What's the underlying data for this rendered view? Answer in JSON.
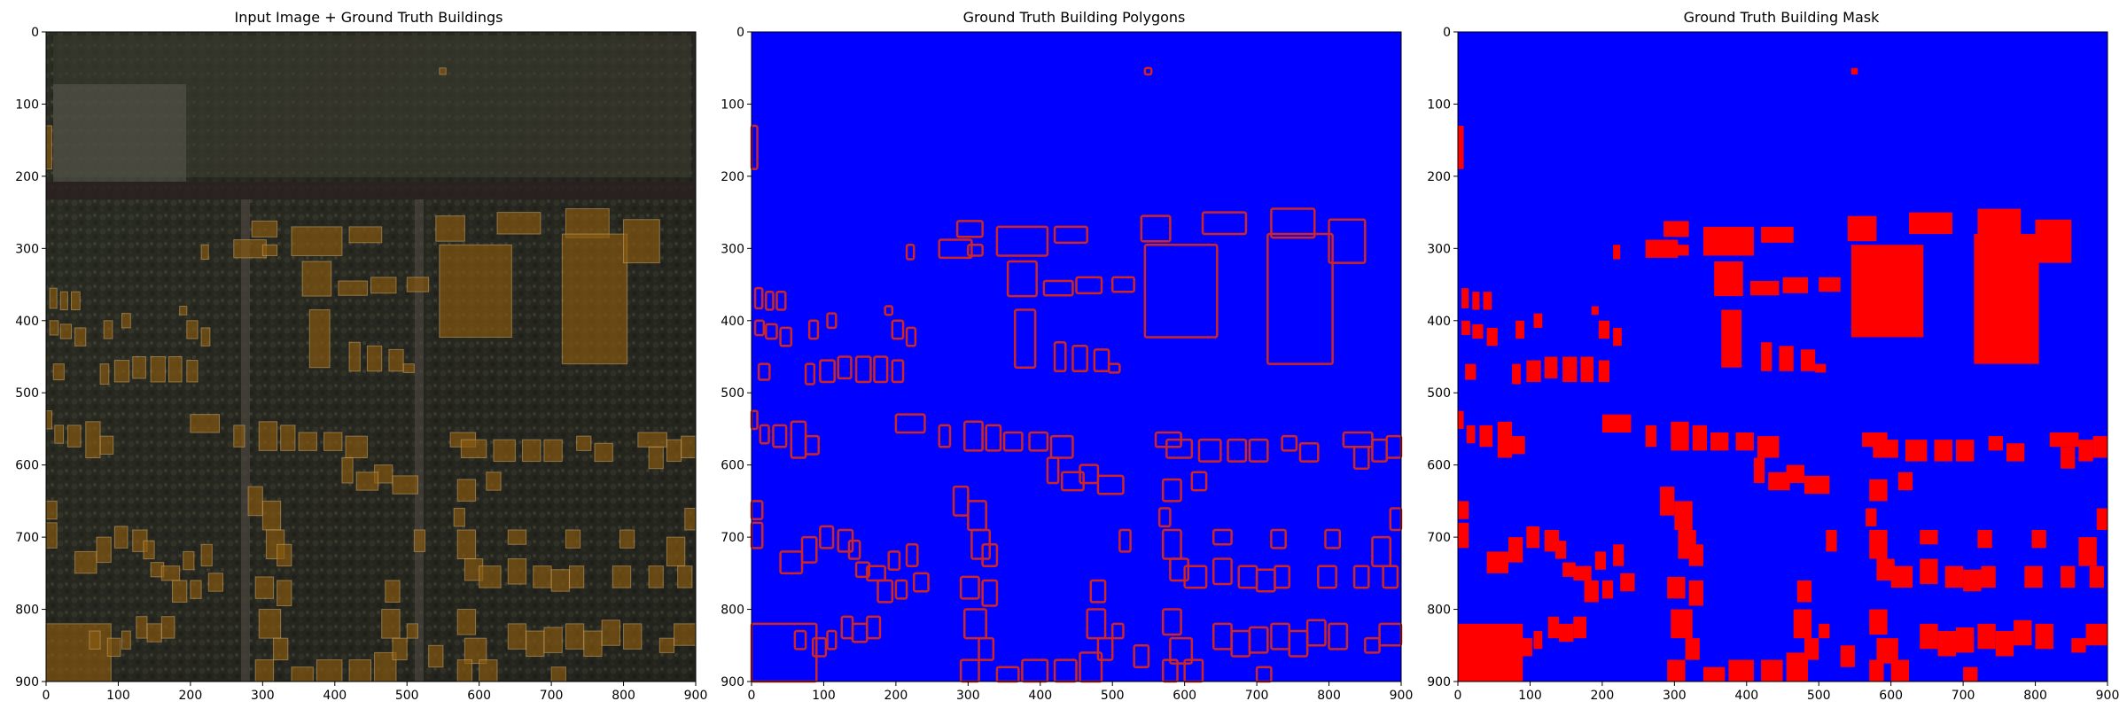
{
  "figure": {
    "panels": [
      {
        "id": "overlay",
        "title": "Input Image + Ground Truth Buildings",
        "kind": "overlay"
      },
      {
        "id": "polygons",
        "title": "Ground Truth Building Polygons",
        "kind": "polygons"
      },
      {
        "id": "mask",
        "title": "Ground Truth Building Mask",
        "kind": "mask"
      }
    ]
  },
  "chart_data": {
    "type": "heatmap",
    "x_ticks": [
      0,
      100,
      200,
      300,
      400,
      500,
      600,
      700,
      800,
      900
    ],
    "y_ticks": [
      0,
      100,
      200,
      300,
      400,
      500,
      600,
      700,
      800,
      900
    ],
    "xlim": [
      0,
      900
    ],
    "ylim": [
      900,
      0
    ],
    "colors": {
      "mask_background": "#0000ff",
      "building": "#ff0000",
      "polygon_outline": "#cc2626",
      "overlay_tint": "#8a5a10"
    },
    "buildings": [
      {
        "x": 0,
        "y": 130,
        "w": 8,
        "h": 60
      },
      {
        "x": 545,
        "y": 50,
        "w": 9,
        "h": 9
      },
      {
        "x": 0,
        "y": 820,
        "w": 90,
        "h": 80
      },
      {
        "x": 215,
        "y": 295,
        "w": 10,
        "h": 20
      },
      {
        "x": 185,
        "y": 380,
        "w": 10,
        "h": 12
      },
      {
        "x": 195,
        "y": 400,
        "w": 15,
        "h": 25
      },
      {
        "x": 215,
        "y": 410,
        "w": 12,
        "h": 25
      },
      {
        "x": 285,
        "y": 262,
        "w": 35,
        "h": 22
      },
      {
        "x": 260,
        "y": 288,
        "w": 45,
        "h": 25
      },
      {
        "x": 340,
        "y": 270,
        "w": 70,
        "h": 40
      },
      {
        "x": 420,
        "y": 270,
        "w": 45,
        "h": 22
      },
      {
        "x": 355,
        "y": 318,
        "w": 40,
        "h": 48
      },
      {
        "x": 405,
        "y": 345,
        "w": 40,
        "h": 20
      },
      {
        "x": 450,
        "y": 340,
        "w": 35,
        "h": 22
      },
      {
        "x": 500,
        "y": 340,
        "w": 30,
        "h": 20
      },
      {
        "x": 540,
        "y": 255,
        "w": 40,
        "h": 35
      },
      {
        "x": 545,
        "y": 295,
        "w": 100,
        "h": 128
      },
      {
        "x": 625,
        "y": 250,
        "w": 60,
        "h": 30
      },
      {
        "x": 720,
        "y": 245,
        "w": 60,
        "h": 40
      },
      {
        "x": 715,
        "y": 280,
        "w": 90,
        "h": 180
      },
      {
        "x": 800,
        "y": 260,
        "w": 50,
        "h": 60
      },
      {
        "x": 5,
        "y": 355,
        "w": 10,
        "h": 28
      },
      {
        "x": 20,
        "y": 360,
        "w": 10,
        "h": 25
      },
      {
        "x": 35,
        "y": 360,
        "w": 12,
        "h": 25
      },
      {
        "x": 5,
        "y": 400,
        "w": 12,
        "h": 20
      },
      {
        "x": 20,
        "y": 405,
        "w": 15,
        "h": 20
      },
      {
        "x": 40,
        "y": 410,
        "w": 15,
        "h": 25
      },
      {
        "x": 10,
        "y": 460,
        "w": 15,
        "h": 22
      },
      {
        "x": 75,
        "y": 460,
        "w": 12,
        "h": 28
      },
      {
        "x": 95,
        "y": 455,
        "w": 20,
        "h": 30
      },
      {
        "x": 120,
        "y": 450,
        "w": 18,
        "h": 30
      },
      {
        "x": 145,
        "y": 450,
        "w": 20,
        "h": 35
      },
      {
        "x": 170,
        "y": 450,
        "w": 18,
        "h": 35
      },
      {
        "x": 195,
        "y": 455,
        "w": 15,
        "h": 30
      },
      {
        "x": 80,
        "y": 400,
        "w": 12,
        "h": 25
      },
      {
        "x": 105,
        "y": 390,
        "w": 12,
        "h": 20
      },
      {
        "x": 365,
        "y": 385,
        "w": 28,
        "h": 80
      },
      {
        "x": 420,
        "y": 430,
        "w": 15,
        "h": 40
      },
      {
        "x": 445,
        "y": 435,
        "w": 20,
        "h": 35
      },
      {
        "x": 475,
        "y": 440,
        "w": 20,
        "h": 30
      },
      {
        "x": 495,
        "y": 460,
        "w": 15,
        "h": 12
      },
      {
        "x": 300,
        "y": 295,
        "w": 20,
        "h": 15
      },
      {
        "x": 0,
        "y": 525,
        "w": 8,
        "h": 25
      },
      {
        "x": 12,
        "y": 545,
        "w": 12,
        "h": 25
      },
      {
        "x": 30,
        "y": 545,
        "w": 18,
        "h": 30
      },
      {
        "x": 55,
        "y": 540,
        "w": 20,
        "h": 50
      },
      {
        "x": 75,
        "y": 560,
        "w": 18,
        "h": 25
      },
      {
        "x": 200,
        "y": 530,
        "w": 40,
        "h": 25
      },
      {
        "x": 260,
        "y": 545,
        "w": 15,
        "h": 30
      },
      {
        "x": 295,
        "y": 540,
        "w": 25,
        "h": 40
      },
      {
        "x": 325,
        "y": 545,
        "w": 20,
        "h": 35
      },
      {
        "x": 350,
        "y": 555,
        "w": 25,
        "h": 25
      },
      {
        "x": 385,
        "y": 555,
        "w": 25,
        "h": 25
      },
      {
        "x": 415,
        "y": 560,
        "w": 30,
        "h": 30
      },
      {
        "x": 455,
        "y": 600,
        "w": 25,
        "h": 25
      },
      {
        "x": 410,
        "y": 590,
        "w": 15,
        "h": 35
      },
      {
        "x": 430,
        "y": 610,
        "w": 30,
        "h": 25
      },
      {
        "x": 480,
        "y": 615,
        "w": 35,
        "h": 25
      },
      {
        "x": 560,
        "y": 555,
        "w": 35,
        "h": 20
      },
      {
        "x": 575,
        "y": 565,
        "w": 35,
        "h": 25
      },
      {
        "x": 620,
        "y": 565,
        "w": 30,
        "h": 30
      },
      {
        "x": 660,
        "y": 565,
        "w": 25,
        "h": 30
      },
      {
        "x": 690,
        "y": 565,
        "w": 25,
        "h": 30
      },
      {
        "x": 735,
        "y": 560,
        "w": 20,
        "h": 20
      },
      {
        "x": 760,
        "y": 570,
        "w": 25,
        "h": 25
      },
      {
        "x": 820,
        "y": 555,
        "w": 40,
        "h": 20
      },
      {
        "x": 835,
        "y": 575,
        "w": 20,
        "h": 30
      },
      {
        "x": 860,
        "y": 565,
        "w": 20,
        "h": 30
      },
      {
        "x": 880,
        "y": 560,
        "w": 20,
        "h": 30
      },
      {
        "x": 570,
        "y": 620,
        "w": 25,
        "h": 30
      },
      {
        "x": 610,
        "y": 610,
        "w": 20,
        "h": 25
      },
      {
        "x": 40,
        "y": 720,
        "w": 30,
        "h": 30
      },
      {
        "x": 70,
        "y": 700,
        "w": 20,
        "h": 35
      },
      {
        "x": 95,
        "y": 685,
        "w": 18,
        "h": 30
      },
      {
        "x": 120,
        "y": 690,
        "w": 20,
        "h": 30
      },
      {
        "x": 135,
        "y": 705,
        "w": 15,
        "h": 25
      },
      {
        "x": 145,
        "y": 735,
        "w": 18,
        "h": 20
      },
      {
        "x": 160,
        "y": 740,
        "w": 25,
        "h": 20
      },
      {
        "x": 190,
        "y": 720,
        "w": 15,
        "h": 25
      },
      {
        "x": 215,
        "y": 710,
        "w": 15,
        "h": 30
      },
      {
        "x": 225,
        "y": 750,
        "w": 20,
        "h": 25
      },
      {
        "x": 175,
        "y": 760,
        "w": 20,
        "h": 30
      },
      {
        "x": 200,
        "y": 760,
        "w": 15,
        "h": 25
      },
      {
        "x": 0,
        "y": 650,
        "w": 15,
        "h": 25
      },
      {
        "x": 0,
        "y": 680,
        "w": 15,
        "h": 35
      },
      {
        "x": 60,
        "y": 830,
        "w": 15,
        "h": 25
      },
      {
        "x": 85,
        "y": 840,
        "w": 18,
        "h": 25
      },
      {
        "x": 105,
        "y": 830,
        "w": 12,
        "h": 25
      },
      {
        "x": 125,
        "y": 810,
        "w": 15,
        "h": 30
      },
      {
        "x": 140,
        "y": 820,
        "w": 20,
        "h": 25
      },
      {
        "x": 160,
        "y": 810,
        "w": 18,
        "h": 30
      },
      {
        "x": 280,
        "y": 630,
        "w": 20,
        "h": 40
      },
      {
        "x": 300,
        "y": 650,
        "w": 25,
        "h": 40
      },
      {
        "x": 305,
        "y": 690,
        "w": 25,
        "h": 40
      },
      {
        "x": 320,
        "y": 710,
        "w": 20,
        "h": 30
      },
      {
        "x": 290,
        "y": 755,
        "w": 25,
        "h": 30
      },
      {
        "x": 320,
        "y": 760,
        "w": 20,
        "h": 35
      },
      {
        "x": 295,
        "y": 800,
        "w": 30,
        "h": 40
      },
      {
        "x": 315,
        "y": 840,
        "w": 20,
        "h": 30
      },
      {
        "x": 290,
        "y": 870,
        "w": 25,
        "h": 30
      },
      {
        "x": 340,
        "y": 880,
        "w": 30,
        "h": 20
      },
      {
        "x": 375,
        "y": 870,
        "w": 35,
        "h": 30
      },
      {
        "x": 420,
        "y": 870,
        "w": 30,
        "h": 30
      },
      {
        "x": 455,
        "y": 860,
        "w": 30,
        "h": 40
      },
      {
        "x": 470,
        "y": 760,
        "w": 20,
        "h": 30
      },
      {
        "x": 465,
        "y": 800,
        "w": 25,
        "h": 40
      },
      {
        "x": 480,
        "y": 840,
        "w": 20,
        "h": 30
      },
      {
        "x": 510,
        "y": 690,
        "w": 15,
        "h": 30
      },
      {
        "x": 530,
        "y": 850,
        "w": 20,
        "h": 30
      },
      {
        "x": 570,
        "y": 690,
        "w": 25,
        "h": 40
      },
      {
        "x": 580,
        "y": 730,
        "w": 25,
        "h": 30
      },
      {
        "x": 600,
        "y": 740,
        "w": 30,
        "h": 30
      },
      {
        "x": 640,
        "y": 730,
        "w": 25,
        "h": 35
      },
      {
        "x": 675,
        "y": 740,
        "w": 25,
        "h": 30
      },
      {
        "x": 700,
        "y": 745,
        "w": 25,
        "h": 30
      },
      {
        "x": 725,
        "y": 740,
        "w": 20,
        "h": 30
      },
      {
        "x": 785,
        "y": 740,
        "w": 25,
        "h": 30
      },
      {
        "x": 835,
        "y": 740,
        "w": 20,
        "h": 30
      },
      {
        "x": 860,
        "y": 700,
        "w": 25,
        "h": 40
      },
      {
        "x": 875,
        "y": 740,
        "w": 20,
        "h": 30
      },
      {
        "x": 885,
        "y": 660,
        "w": 15,
        "h": 30
      },
      {
        "x": 570,
        "y": 800,
        "w": 25,
        "h": 35
      },
      {
        "x": 580,
        "y": 840,
        "w": 30,
        "h": 35
      },
      {
        "x": 600,
        "y": 870,
        "w": 25,
        "h": 30
      },
      {
        "x": 640,
        "y": 820,
        "w": 25,
        "h": 35
      },
      {
        "x": 665,
        "y": 830,
        "w": 25,
        "h": 35
      },
      {
        "x": 690,
        "y": 825,
        "w": 25,
        "h": 35
      },
      {
        "x": 720,
        "y": 820,
        "w": 25,
        "h": 35
      },
      {
        "x": 745,
        "y": 830,
        "w": 25,
        "h": 35
      },
      {
        "x": 770,
        "y": 815,
        "w": 25,
        "h": 35
      },
      {
        "x": 800,
        "y": 820,
        "w": 25,
        "h": 35
      },
      {
        "x": 870,
        "y": 820,
        "w": 30,
        "h": 30
      },
      {
        "x": 850,
        "y": 840,
        "w": 20,
        "h": 20
      },
      {
        "x": 640,
        "y": 690,
        "w": 25,
        "h": 20
      },
      {
        "x": 720,
        "y": 690,
        "w": 20,
        "h": 25
      },
      {
        "x": 795,
        "y": 690,
        "w": 20,
        "h": 25
      },
      {
        "x": 700,
        "y": 880,
        "w": 20,
        "h": 20
      },
      {
        "x": 500,
        "y": 820,
        "w": 15,
        "h": 20
      },
      {
        "x": 565,
        "y": 660,
        "w": 15,
        "h": 25
      },
      {
        "x": 570,
        "y": 870,
        "w": 20,
        "h": 30
      }
    ]
  }
}
